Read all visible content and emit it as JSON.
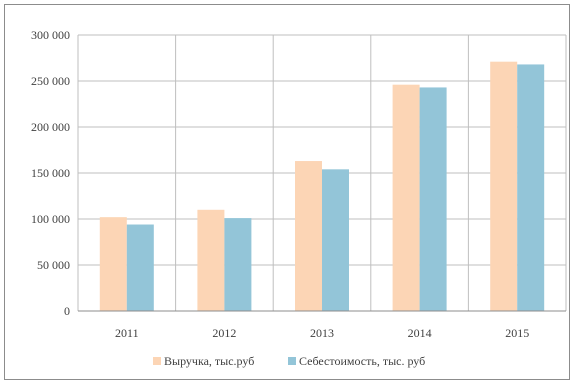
{
  "chart_data": {
    "type": "bar",
    "categories": [
      "2011",
      "2012",
      "2013",
      "2014",
      "2015"
    ],
    "series": [
      {
        "name": "Выручка, тыс.руб",
        "color": "#fcd5b5",
        "values": [
          102000,
          110000,
          163000,
          246000,
          271000
        ]
      },
      {
        "name": "Себестоимость, тыс. руб",
        "color": "#93c5d8",
        "values": [
          94000,
          101000,
          154000,
          243000,
          268000
        ]
      }
    ],
    "ylim": [
      0,
      300000
    ],
    "y_ticks": [
      0,
      50000,
      100000,
      150000,
      200000,
      250000,
      300000
    ],
    "y_tick_labels": [
      "0",
      "50 000",
      "100 000",
      "150 000",
      "200 000",
      "250 000",
      "300 000"
    ],
    "grid": true,
    "legend": "bottom",
    "title": "",
    "xlabel": "",
    "ylabel": ""
  }
}
